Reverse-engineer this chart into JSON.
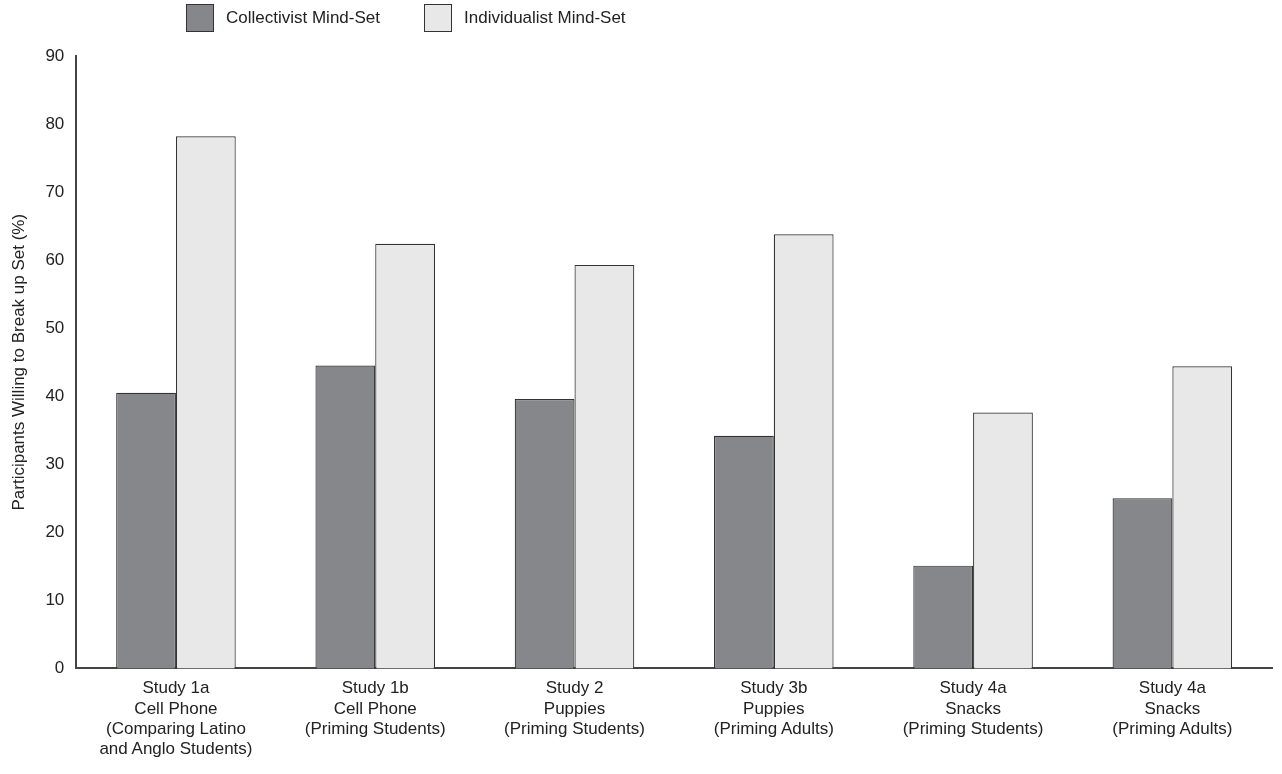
{
  "chart_data": {
    "type": "bar",
    "ylabel": "Participants Willing to Break up Set (%)",
    "categories": [
      "Study 1a\nCell Phone\n(Comparing Latino\nand Anglo Students)",
      "Study 1b\nCell Phone\n(Priming Students)",
      "Study 2\nPuppies\n(Priming Students)",
      "Study 3b\nPuppies\n(Priming Adults)",
      "Study 4a\nSnacks\n(Priming Students)",
      "Study 4a\nSnacks\n(Priming Adults)"
    ],
    "series": [
      {
        "name": "Collectivist Mind-Set",
        "color": "#86878b",
        "values": [
          40.5,
          44.5,
          39.6,
          34.2,
          15.1,
          25.0
        ]
      },
      {
        "name": "Individualist Mind-Set",
        "color": "#e8e8e8",
        "values": [
          78.2,
          62.4,
          59.3,
          63.8,
          37.6,
          44.4
        ]
      }
    ],
    "ylim": [
      0,
      90
    ],
    "yticks": [
      0,
      10,
      20,
      30,
      40,
      50,
      60,
      70,
      80,
      90
    ],
    "grid": false,
    "legend": "top left"
  }
}
